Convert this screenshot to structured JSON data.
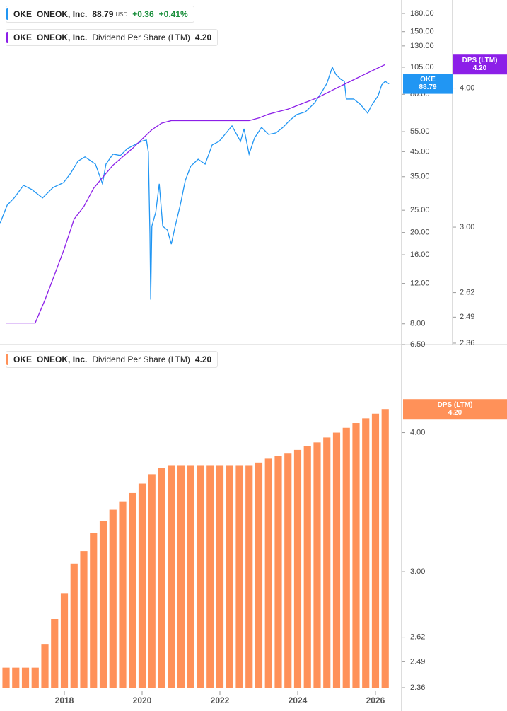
{
  "chart_data": [
    {
      "type": "line",
      "log_scale": true,
      "xlim": [
        2016.345,
        2026.655
      ],
      "ylim": [
        6.5,
        206
      ],
      "yticks": [
        {
          "value": 6.5,
          "label": "6.50"
        },
        {
          "value": 8,
          "label": "8.00"
        },
        {
          "value": 12,
          "label": "12.00"
        },
        {
          "value": 16,
          "label": "16.00"
        },
        {
          "value": 20,
          "label": "20.00"
        },
        {
          "value": 25,
          "label": "25.00"
        },
        {
          "value": 35,
          "label": "35.00"
        },
        {
          "value": 45,
          "label": "45.00"
        },
        {
          "value": 55,
          "label": "55.00"
        },
        {
          "value": 80,
          "label": "80.00"
        },
        {
          "value": 105,
          "label": "105.00"
        },
        {
          "value": 130,
          "label": "130.00"
        },
        {
          "value": 150,
          "label": "150.00"
        },
        {
          "value": 180,
          "label": "180.00"
        }
      ],
      "y2lim": [
        2.353,
        4.8
      ],
      "y2ticks": [
        2.36,
        2.49,
        2.62,
        {
          "value": 3,
          "label": "3.00"
        },
        {
          "value": 4,
          "label": "4.00"
        }
      ],
      "legend": [
        {
          "ticker": "OKE",
          "price": 88.79,
          "currency": "USD",
          "change": "+0.36",
          "change_percent": "+0.41%"
        },
        {
          "ticker": "OKE",
          "company": "ONEOK, Inc.",
          "value_label": "4.20"
        }
      ],
      "badges": [
        {
          "label": "OKE",
          "value": 88.79,
          "color": "#2196f3"
        },
        {
          "label": "DPS (LTM)",
          "value": 4.2,
          "value_label": "4.20",
          "axis": "y2",
          "color": "#8c1fe8"
        }
      ],
      "series": [
        {
          "name": "ONEOK, Inc.",
          "color": "#2196f3",
          "x": [
            2016.35,
            2016.53,
            2016.71,
            2016.95,
            2017.16,
            2017.44,
            2017.71,
            2017.98,
            2018.16,
            2018.35,
            2018.53,
            2018.8,
            2018.98,
            2019.07,
            2019.25,
            2019.44,
            2019.62,
            2019.8,
            2019.98,
            2020.11,
            2020.16,
            2020.2,
            2020.22,
            2020.25,
            2020.35,
            2020.44,
            2020.53,
            2020.65,
            2020.75,
            2020.85,
            2020.98,
            2021.11,
            2021.25,
            2021.44,
            2021.62,
            2021.8,
            2021.98,
            2022.16,
            2022.31,
            2022.53,
            2022.62,
            2022.75,
            2022.89,
            2023.07,
            2023.25,
            2023.44,
            2023.62,
            2023.8,
            2023.98,
            2024.2,
            2024.44,
            2024.62,
            2024.75,
            2024.89,
            2024.98,
            2025.11,
            2025.2,
            2025.25,
            2025.44,
            2025.62,
            2025.8,
            2025.89,
            2026.07,
            2026.16,
            2026.25,
            2026.35
          ],
          "values": [
            22.0,
            26.3,
            28.3,
            32.1,
            30.8,
            28.3,
            31.4,
            33.0,
            36.2,
            40.9,
            42.7,
            39.7,
            32.6,
            39.7,
            43.9,
            43.3,
            46.4,
            48.1,
            49.9,
            50.6,
            44.8,
            19.8,
            10.2,
            21.3,
            24.5,
            32.6,
            21.3,
            20.5,
            17.8,
            21.3,
            26.3,
            33.7,
            38.9,
            41.7,
            39.7,
            48.1,
            49.9,
            54.3,
            58.3,
            49.9,
            56.6,
            43.9,
            51.6,
            57.4,
            53.5,
            54.3,
            57.4,
            61.7,
            65.3,
            67.1,
            73.6,
            81.9,
            89.2,
            105,
            97.8,
            93.0,
            91.1,
            76.3,
            76.3,
            72.1,
            66.2,
            71.1,
            79.0,
            87.9,
            91.1,
            88.79
          ]
        },
        {
          "name": "Dividend Per Share (LTM)",
          "color": "#8c1fe8",
          "axis": "y2",
          "x": [
            2016.5,
            2016.75,
            2017,
            2017.25,
            2017.5,
            2017.75,
            2018,
            2018.25,
            2018.5,
            2018.75,
            2019,
            2019.25,
            2019.5,
            2019.75,
            2020,
            2020.25,
            2020.5,
            2020.75,
            2021,
            2021.25,
            2021.5,
            2021.75,
            2022,
            2022.25,
            2022.5,
            2022.75,
            2023,
            2023.25,
            2023.5,
            2023.75,
            2024,
            2024.25,
            2024.5,
            2024.75,
            2025,
            2025.25,
            2025.5,
            2025.75,
            2026,
            2026.25
          ],
          "values": [
            2.46,
            2.46,
            2.46,
            2.46,
            2.58,
            2.72,
            2.87,
            3.05,
            3.13,
            3.25,
            3.33,
            3.41,
            3.47,
            3.53,
            3.6,
            3.67,
            3.72,
            3.74,
            3.74,
            3.74,
            3.74,
            3.74,
            3.74,
            3.74,
            3.74,
            3.74,
            3.76,
            3.79,
            3.81,
            3.83,
            3.86,
            3.89,
            3.92,
            3.96,
            4.0,
            4.04,
            4.08,
            4.12,
            4.16,
            4.2
          ]
        }
      ]
    },
    {
      "type": "bar",
      "log_scale": true,
      "xlim": [
        2016.345,
        2026.655
      ],
      "xticks": [
        2018,
        2020,
        2022,
        2024,
        2026
      ],
      "ylim": [
        2.36,
        4.8
      ],
      "yticks": [
        2.36,
        2.49,
        2.62,
        {
          "value": 3,
          "label": "3.00"
        },
        {
          "value": 4,
          "label": "4.00"
        }
      ],
      "legend": {
        "ticker": "OKE",
        "company": "ONEOK, Inc.",
        "name": "Dividend Per Share (LTM)",
        "value_label": "4.20"
      },
      "badge": {
        "label": "DPS (LTM)",
        "value": 4.2,
        "value_label": "4.20",
        "color": "#ff9159"
      },
      "color": "#ff9159",
      "x": [
        2016.5,
        2016.75,
        2017,
        2017.25,
        2017.5,
        2017.75,
        2018,
        2018.25,
        2018.5,
        2018.75,
        2019,
        2019.25,
        2019.5,
        2019.75,
        2020,
        2020.25,
        2020.5,
        2020.75,
        2021,
        2021.25,
        2021.5,
        2021.75,
        2022,
        2022.25,
        2022.5,
        2022.75,
        2023,
        2023.25,
        2023.5,
        2023.75,
        2024,
        2024.25,
        2024.5,
        2024.75,
        2025,
        2025.25,
        2025.5,
        2025.75,
        2026,
        2026.25
      ],
      "values": [
        2.46,
        2.46,
        2.46,
        2.46,
        2.58,
        2.72,
        2.87,
        3.05,
        3.13,
        3.25,
        3.33,
        3.41,
        3.47,
        3.53,
        3.6,
        3.67,
        3.72,
        3.74,
        3.74,
        3.74,
        3.74,
        3.74,
        3.74,
        3.74,
        3.74,
        3.74,
        3.76,
        3.79,
        3.81,
        3.83,
        3.86,
        3.89,
        3.92,
        3.96,
        4.0,
        4.04,
        4.08,
        4.12,
        4.16,
        4.2
      ]
    }
  ]
}
